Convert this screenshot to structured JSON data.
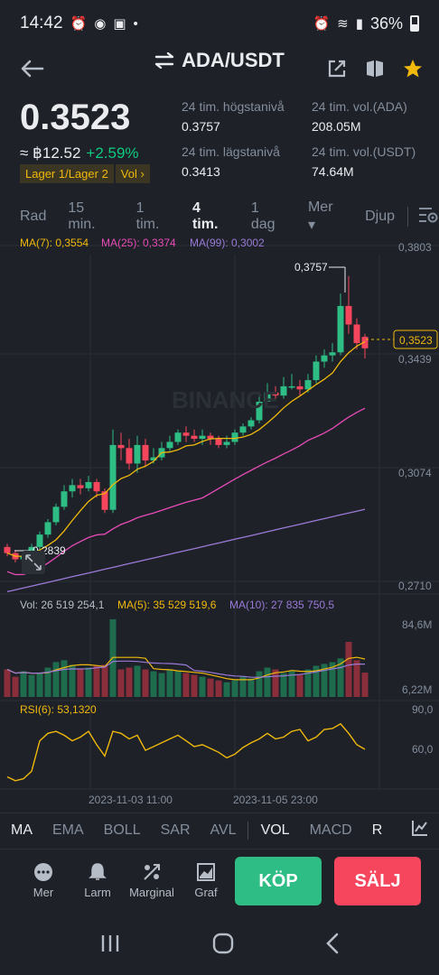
{
  "status_bar": {
    "time": "14:42",
    "battery": "36%"
  },
  "header": {
    "pair": "ADA/USDT"
  },
  "price": {
    "last": "0.3523",
    "fiat": "≈ ฿12.52",
    "change": "+2.59%",
    "tag_layer": "Lager 1/Lager 2",
    "tag_vol": "Vol ›"
  },
  "stats": {
    "high_label": "24 tim. högstanivå",
    "high_value": "0.3757",
    "low_label": "24 tim. lägstanivå",
    "low_value": "0.3413",
    "vol_ada_label": "24 tim. vol.(ADA)",
    "vol_ada_value": "208.05M",
    "vol_usdt_label": "24 tim. vol.(USDT)",
    "vol_usdt_value": "74.64M"
  },
  "intervals": [
    "Rad",
    "15 min.",
    "1 tim.",
    "4 tim.",
    "1 dag",
    "Mer ▾",
    "Djup"
  ],
  "active_interval": "4 tim.",
  "chart": {
    "ma_legend": {
      "ma7": "MA(7): 0,3554",
      "ma25": "MA(25): 0,3374",
      "ma99": "MA(99): 0,3002"
    },
    "price_axis": [
      "0,3803",
      "0,3439",
      "0,3074",
      "0,2710"
    ],
    "current_price_tag": "0,3523",
    "high_marker": "0,3757",
    "low_marker": "0,2839",
    "watermark": "BINANCE",
    "vol_legend": {
      "vol": "Vol: 26 519 254,1",
      "ma5": "MA(5): 35 529 519,6",
      "ma10": "MA(10): 27 835 750,5"
    },
    "vol_axis": [
      "84,6M",
      "6,22M"
    ],
    "rsi_legend": "RSI(6): 53,1320",
    "rsi_axis": [
      "90,0",
      "60,0"
    ],
    "time_labels": [
      "2023-11-03 11:00",
      "2023-11-05 23:00"
    ],
    "colors": {
      "up": "#2ebd85",
      "down": "#f6465d",
      "ma7": "#f0b90b",
      "ma25": "#e94bb8",
      "ma99": "#9b7bd8",
      "rsi": "#f0b90b"
    }
  },
  "chart_data": {
    "type": "candlestick",
    "price_range": [
      0.271,
      0.3803
    ],
    "candles": [
      {
        "o": 0.288,
        "c": 0.286,
        "h": 0.289,
        "l": 0.285
      },
      {
        "o": 0.286,
        "c": 0.284,
        "h": 0.287,
        "l": 0.283
      },
      {
        "o": 0.284,
        "c": 0.285,
        "h": 0.287,
        "l": 0.2839
      },
      {
        "o": 0.285,
        "c": 0.288,
        "h": 0.289,
        "l": 0.2845
      },
      {
        "o": 0.288,
        "c": 0.292,
        "h": 0.293,
        "l": 0.287
      },
      {
        "o": 0.292,
        "c": 0.296,
        "h": 0.297,
        "l": 0.291
      },
      {
        "o": 0.296,
        "c": 0.301,
        "h": 0.302,
        "l": 0.295
      },
      {
        "o": 0.301,
        "c": 0.306,
        "h": 0.308,
        "l": 0.3
      },
      {
        "o": 0.306,
        "c": 0.308,
        "h": 0.31,
        "l": 0.304
      },
      {
        "o": 0.308,
        "c": 0.307,
        "h": 0.31,
        "l": 0.305
      },
      {
        "o": 0.307,
        "c": 0.309,
        "h": 0.311,
        "l": 0.306
      },
      {
        "o": 0.309,
        "c": 0.306,
        "h": 0.31,
        "l": 0.304
      },
      {
        "o": 0.306,
        "c": 0.3,
        "h": 0.307,
        "l": 0.299
      },
      {
        "o": 0.3,
        "c": 0.321,
        "h": 0.326,
        "l": 0.299
      },
      {
        "o": 0.321,
        "c": 0.32,
        "h": 0.325,
        "l": 0.316
      },
      {
        "o": 0.32,
        "c": 0.315,
        "h": 0.323,
        "l": 0.313
      },
      {
        "o": 0.315,
        "c": 0.321,
        "h": 0.324,
        "l": 0.312
      },
      {
        "o": 0.321,
        "c": 0.316,
        "h": 0.323,
        "l": 0.314
      },
      {
        "o": 0.316,
        "c": 0.317,
        "h": 0.32,
        "l": 0.315
      },
      {
        "o": 0.317,
        "c": 0.32,
        "h": 0.322,
        "l": 0.316
      },
      {
        "o": 0.32,
        "c": 0.322,
        "h": 0.324,
        "l": 0.319
      },
      {
        "o": 0.322,
        "c": 0.325,
        "h": 0.326,
        "l": 0.321
      },
      {
        "o": 0.325,
        "c": 0.324,
        "h": 0.327,
        "l": 0.322
      },
      {
        "o": 0.324,
        "c": 0.323,
        "h": 0.326,
        "l": 0.322
      },
      {
        "o": 0.323,
        "c": 0.324,
        "h": 0.326,
        "l": 0.321
      },
      {
        "o": 0.324,
        "c": 0.323,
        "h": 0.325,
        "l": 0.321
      },
      {
        "o": 0.323,
        "c": 0.321,
        "h": 0.324,
        "l": 0.32
      },
      {
        "o": 0.321,
        "c": 0.322,
        "h": 0.324,
        "l": 0.32
      },
      {
        "o": 0.322,
        "c": 0.325,
        "h": 0.326,
        "l": 0.321
      },
      {
        "o": 0.325,
        "c": 0.327,
        "h": 0.328,
        "l": 0.324
      },
      {
        "o": 0.327,
        "c": 0.329,
        "h": 0.33,
        "l": 0.326
      },
      {
        "o": 0.329,
        "c": 0.335,
        "h": 0.338,
        "l": 0.328
      },
      {
        "o": 0.335,
        "c": 0.338,
        "h": 0.341,
        "l": 0.334
      },
      {
        "o": 0.338,
        "c": 0.337,
        "h": 0.34,
        "l": 0.336
      },
      {
        "o": 0.337,
        "c": 0.34,
        "h": 0.343,
        "l": 0.336
      },
      {
        "o": 0.34,
        "c": 0.34,
        "h": 0.344,
        "l": 0.339
      },
      {
        "o": 0.34,
        "c": 0.339,
        "h": 0.342,
        "l": 0.337
      },
      {
        "o": 0.339,
        "c": 0.342,
        "h": 0.344,
        "l": 0.338
      },
      {
        "o": 0.342,
        "c": 0.348,
        "h": 0.35,
        "l": 0.341
      },
      {
        "o": 0.348,
        "c": 0.35,
        "h": 0.352,
        "l": 0.346
      },
      {
        "o": 0.35,
        "c": 0.351,
        "h": 0.354,
        "l": 0.348
      },
      {
        "o": 0.351,
        "c": 0.366,
        "h": 0.37,
        "l": 0.35
      },
      {
        "o": 0.366,
        "c": 0.36,
        "h": 0.3757,
        "l": 0.357
      },
      {
        "o": 0.36,
        "c": 0.354,
        "h": 0.362,
        "l": 0.352
      },
      {
        "o": 0.356,
        "c": 0.3523,
        "h": 0.357,
        "l": 0.349
      }
    ],
    "ma7_end": 0.3554,
    "ma25_end": 0.3374,
    "ma99_end": 0.3002,
    "volume": [
      30,
      22,
      28,
      24,
      26,
      32,
      38,
      40,
      35,
      30,
      32,
      34,
      35,
      84.6,
      30,
      32,
      34,
      30,
      28,
      26,
      30,
      28,
      26,
      24,
      22,
      20,
      18,
      16,
      18,
      22,
      20,
      28,
      32,
      30,
      26,
      28,
      24,
      30,
      34,
      36,
      38,
      42,
      60,
      40,
      26.5
    ],
    "volume_range": [
      6.22,
      84.6
    ],
    "rsi": [
      24,
      20,
      22,
      30,
      62,
      70,
      72,
      68,
      62,
      66,
      72,
      58,
      46,
      72,
      70,
      64,
      68,
      52,
      56,
      60,
      64,
      68,
      62,
      56,
      58,
      54,
      50,
      44,
      48,
      55,
      60,
      64,
      70,
      64,
      66,
      72,
      74,
      62,
      66,
      74,
      75,
      80,
      70,
      58,
      53.132
    ],
    "rsi_range": [
      15,
      95
    ]
  },
  "indicators": [
    "MA",
    "EMA",
    "BOLL",
    "SAR",
    "AVL",
    "VOL",
    "MACD",
    "R"
  ],
  "active_indicators": [
    "MA",
    "VOL"
  ],
  "actions": [
    {
      "label": "Mer",
      "icon": "more-icon"
    },
    {
      "label": "Larm",
      "icon": "bell-icon"
    },
    {
      "label": "Marginal",
      "icon": "margin-icon"
    },
    {
      "label": "Graf",
      "icon": "chart-icon"
    }
  ],
  "buy_label": "KÖP",
  "sell_label": "SÄLJ"
}
